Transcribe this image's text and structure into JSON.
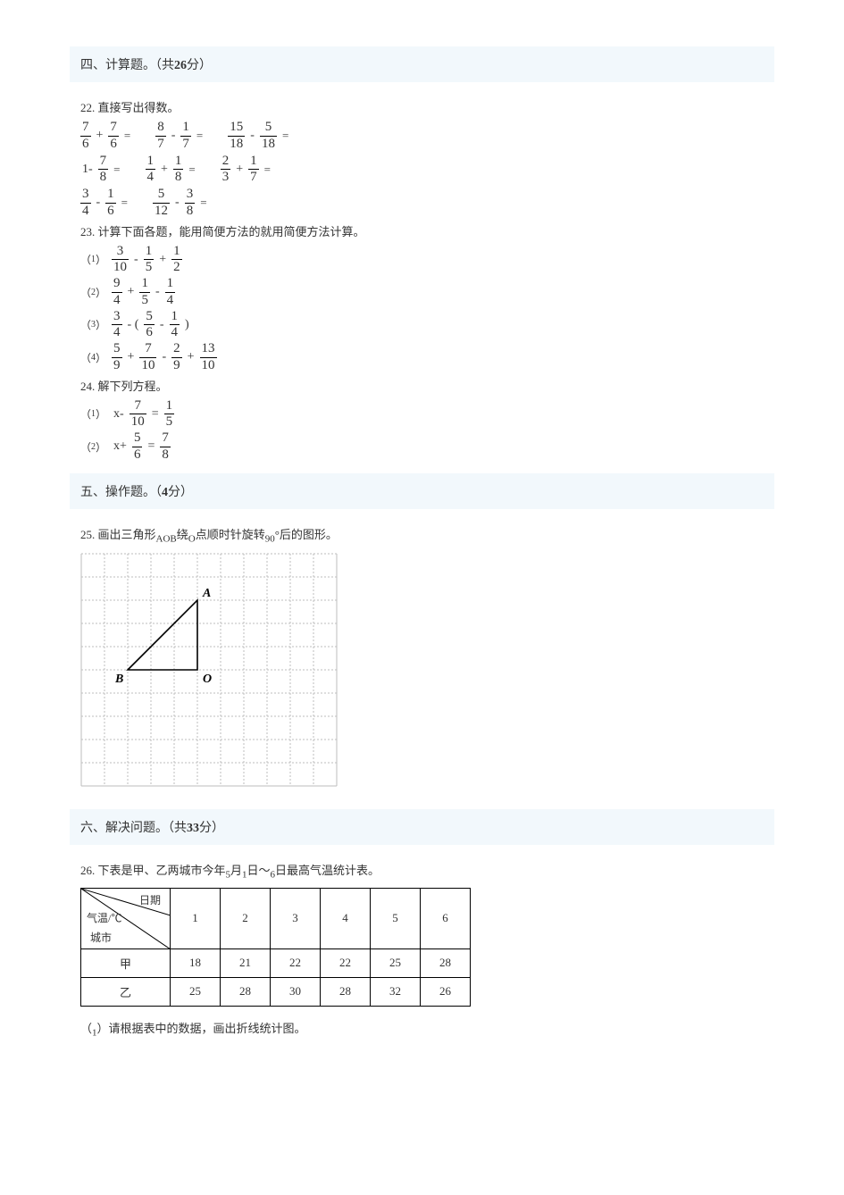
{
  "sections": {
    "s4": {
      "label_pre": "四、计算题。（共",
      "points": "26",
      "label_post": "分）"
    },
    "s5": {
      "label_pre": "五、操作题。（",
      "points": "4",
      "label_post": "分）"
    },
    "s6": {
      "label_pre": "六、解决问题。（共",
      "points": "33",
      "label_post": "分）"
    }
  },
  "q22": {
    "num": "22.",
    "title": "直接写出得数。",
    "rows": [
      [
        {
          "a": {
            "n": "7",
            "d": "6"
          },
          "op": "+",
          "b": {
            "n": "7",
            "d": "6"
          }
        },
        {
          "a": {
            "n": "8",
            "d": "7"
          },
          "op": "-",
          "b": {
            "n": "1",
            "d": "7"
          }
        },
        {
          "a": {
            "n": "15",
            "d": "18"
          },
          "op": "-",
          "b": {
            "n": "5",
            "d": "18"
          }
        }
      ],
      [
        {
          "pre": "1-",
          "a": {
            "n": "7",
            "d": "8"
          },
          "single": true
        },
        {
          "a": {
            "n": "1",
            "d": "4"
          },
          "op": "+",
          "b": {
            "n": "1",
            "d": "8"
          }
        },
        {
          "a": {
            "n": "2",
            "d": "3"
          },
          "op": "+",
          "b": {
            "n": "1",
            "d": "7"
          }
        }
      ],
      [
        {
          "a": {
            "n": "3",
            "d": "4"
          },
          "op": "-",
          "b": {
            "n": "1",
            "d": "6"
          }
        },
        {
          "a": {
            "n": "5",
            "d": "12"
          },
          "op": "-",
          "b": {
            "n": "3",
            "d": "8"
          }
        }
      ]
    ]
  },
  "q23": {
    "num": "23.",
    "title": "计算下面各题，能用简便方法的就用简便方法计算。",
    "items": [
      {
        "label": "（1）",
        "parts": [
          "f:3/10",
          "op:-",
          "f:1/5",
          "op:+",
          "f:1/2"
        ]
      },
      {
        "label": "（2）",
        "parts": [
          "f:9/4",
          "op:+",
          "f:1/5",
          "op:-",
          "f:1/4"
        ]
      },
      {
        "label": "（3）",
        "parts": [
          "f:3/4",
          "op:- (",
          "f:5/6",
          "op:-",
          "f:1/4",
          "t:)"
        ]
      },
      {
        "label": "（4）",
        "parts": [
          "f:5/9",
          "op:+",
          "f:7/10",
          "op:-",
          "f:2/9",
          "op:+",
          "f:13/10"
        ]
      }
    ]
  },
  "q24": {
    "num": "24.",
    "title": "解下列方程。",
    "items": [
      {
        "label": "（1）",
        "parts": [
          "t:x-",
          "f:7/10",
          "t:=",
          "f:1/5"
        ]
      },
      {
        "label": "（2）",
        "parts": [
          "t:x+",
          "f:5/6",
          "t:=",
          "f:7/8"
        ]
      }
    ]
  },
  "q25": {
    "num": "25.",
    "title_pre": "画出三角形",
    "title_mid1": "AOB",
    "title_mid2": "绕",
    "title_mid3": "O",
    "title_mid4": "点顺时针旋转",
    "title_mid5": "90",
    "title_post": "°后的图形。",
    "grid": {
      "cols": 11,
      "rows": 10,
      "cell": 26,
      "stroke": "#bdbdbd",
      "dash": "2,2",
      "triangle": {
        "O": [
          5,
          5
        ],
        "A": [
          5,
          2
        ],
        "B": [
          2,
          5
        ],
        "labels": {
          "A": "A",
          "B": "B",
          "O": "O"
        },
        "stroke": "#000000",
        "width": 1.6
      }
    }
  },
  "q26": {
    "num": "26.",
    "title_pre": "下表是甲、乙两城市今年",
    "title_m1": "5",
    "title_m2": "月",
    "title_m3": "1",
    "title_m4": "日～",
    "title_m5": "6",
    "title_post": "日最高气温统计表。",
    "table": {
      "corner": {
        "date": "日期",
        "temp": "气温/℃",
        "city": "城市"
      },
      "dates": [
        "1",
        "2",
        "3",
        "4",
        "5",
        "6"
      ],
      "rows": [
        {
          "city": "甲",
          "vals": [
            "18",
            "21",
            "22",
            "22",
            "25",
            "28"
          ]
        },
        {
          "city": "乙",
          "vals": [
            "25",
            "28",
            "30",
            "28",
            "32",
            "26"
          ]
        }
      ]
    },
    "sub1_pre": "（",
    "sub1_n": "1",
    "sub1_post": "）请根据表中的数据，画出折线统计图。"
  }
}
